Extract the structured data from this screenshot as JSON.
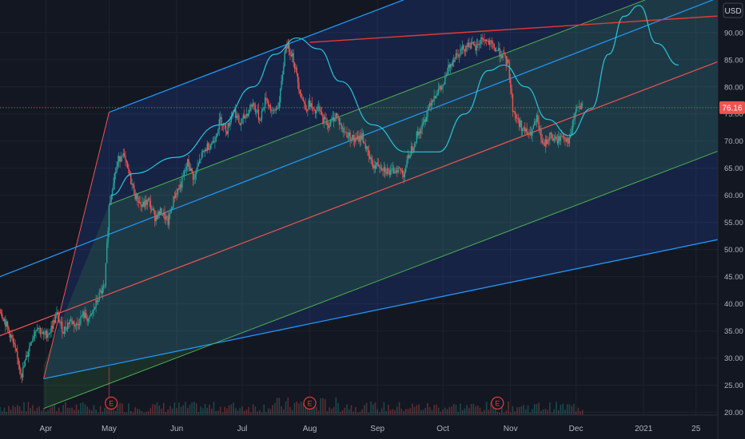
{
  "chart_data": {
    "type": "candlestick",
    "currency_label": "USD",
    "last_price": "76.16",
    "y_ticks": [
      20,
      25,
      30,
      35,
      40,
      45,
      50,
      55,
      60,
      65,
      70,
      75,
      80,
      85,
      90
    ],
    "y_tick_labels": [
      "20.00",
      "25.00",
      "30.00",
      "35.00",
      "40.00",
      "45.00",
      "50.00",
      "55.00",
      "60.00",
      "65.00",
      "70.00",
      "75.00",
      "80.00",
      "85.00",
      "90.00"
    ],
    "x_ticks": [
      "Apr",
      "May",
      "Jun",
      "Jul",
      "Aug",
      "Sep",
      "Oct",
      "Nov",
      "Dec",
      "2021",
      "25"
    ],
    "x_tick_days": [
      0,
      29,
      60,
      90,
      121,
      152,
      182,
      213,
      243,
      274,
      298
    ],
    "ylim": [
      19.5,
      96
    ],
    "xlim": [
      -21,
      308
    ],
    "price_series": {
      "x": [
        -21,
        -16,
        -11,
        -7,
        -4,
        -1,
        2,
        5,
        8,
        11,
        14,
        17,
        20,
        23,
        25,
        27,
        29,
        31,
        33,
        35,
        38,
        41,
        44,
        47,
        50,
        53,
        56,
        59,
        62,
        65,
        68,
        71,
        74,
        77,
        80,
        83,
        86,
        89,
        92,
        95,
        98,
        101,
        104,
        107,
        110,
        113,
        116,
        119,
        121,
        123,
        125,
        127,
        130,
        133,
        136,
        139,
        142,
        145,
        148,
        151,
        152,
        155,
        158,
        161,
        164,
        167,
        170,
        173,
        176,
        179,
        182,
        185,
        188,
        191,
        194,
        197,
        200,
        203,
        206,
        209,
        212,
        213,
        214,
        216,
        219,
        222,
        225,
        228,
        231,
        234,
        237,
        240,
        243,
        246
      ],
      "y": [
        39,
        34,
        27,
        33,
        36,
        34,
        35,
        38,
        35,
        37,
        36,
        38,
        37,
        40,
        42,
        43,
        58,
        63,
        66,
        68,
        64,
        60,
        58,
        59,
        56,
        57,
        55,
        60,
        62,
        66,
        63,
        67,
        69,
        70,
        74,
        72,
        76,
        73,
        75,
        77,
        74,
        78,
        75,
        77,
        88,
        86,
        80,
        76,
        77,
        75,
        76,
        74,
        73,
        75,
        72,
        71,
        70,
        71,
        67,
        65,
        66,
        65,
        64,
        65,
        64,
        68,
        71,
        73,
        77,
        79,
        80,
        84,
        86,
        87,
        88,
        87,
        89,
        88,
        87,
        86,
        84,
        80,
        76,
        74,
        72,
        71,
        74,
        69,
        71,
        70,
        71,
        70,
        76,
        76.16
      ]
    },
    "bubble_curves": [
      {
        "x": [
          30,
          40,
          60,
          80,
          95,
          105,
          115,
          125,
          135,
          150,
          165,
          180,
          192,
          203
        ],
        "y": [
          60,
          64,
          67,
          73,
          80,
          86,
          89,
          87,
          81,
          73,
          68,
          68,
          75,
          83
        ]
      },
      {
        "x": [
          203,
          210,
          220,
          230,
          240,
          250,
          258,
          265,
          272,
          280,
          290
        ],
        "y": [
          83,
          84,
          80,
          74,
          71,
          76,
          86,
          93,
          95,
          88,
          84
        ]
      }
    ],
    "earnings_markers": {
      "label": "E",
      "days": [
        30,
        121,
        207
      ]
    },
    "volume_spike_day": 29
  }
}
